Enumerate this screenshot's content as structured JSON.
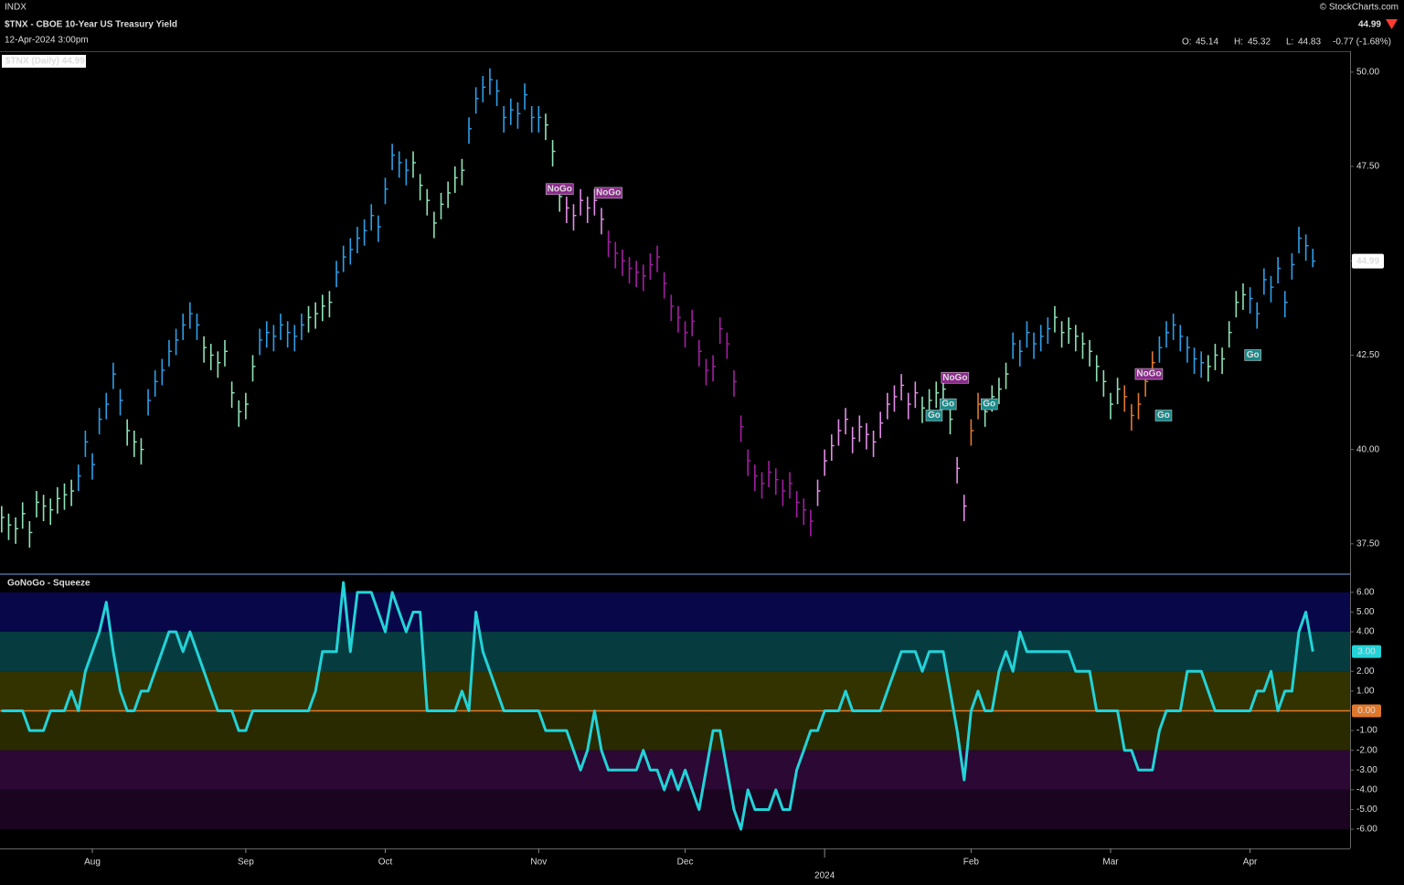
{
  "header": {
    "exchange": "INDX",
    "title": "$TNX - CBOE 10-Year US Treasury Yield",
    "subtitle": "12-Apr-2024 3:00pm",
    "source": "© StockCharts.com",
    "quote_labels": [
      "O:",
      "H:",
      "L:"
    ],
    "open": 45.14,
    "change": "-0.77 (-1.68%)",
    "change_color": "#ff3b30"
  },
  "chart_data": [
    {
      "type": "ohlc",
      "legend": "$TNX (Daily) 44.99",
      "xlim": [
        -0.24,
        193.34
      ],
      "ylim": [
        36.72,
        50.53
      ],
      "yticks": [
        {
          "value": 37.5,
          "label": "37.50"
        },
        {
          "value": 40,
          "label": "40.00"
        },
        {
          "value": 42.5,
          "label": "42.50"
        },
        {
          "value": 45,
          "label": "45.00"
        },
        {
          "value": 47.5,
          "label": "47.50"
        },
        {
          "value": 50,
          "label": "50.00"
        }
      ],
      "close": [
        38.2,
        38.0,
        37.9,
        38.3,
        37.8,
        38.6,
        38.5,
        38.4,
        38.7,
        38.8,
        38.9,
        39.3,
        40.2,
        39.6,
        40.8,
        41.2,
        42.0,
        41.3,
        40.5,
        40.2,
        40.0,
        41.3,
        41.8,
        42.1,
        42.6,
        42.9,
        43.3,
        43.6,
        43.3,
        42.7,
        42.5,
        42.3,
        42.6,
        41.5,
        41.0,
        41.2,
        42.2,
        42.9,
        43.1,
        43.0,
        43.3,
        43.1,
        43.0,
        43.3,
        43.5,
        43.6,
        43.8,
        43.9,
        44.7,
        45.1,
        45.3,
        45.6,
        45.8,
        46.2,
        45.9,
        46.9,
        47.8,
        47.6,
        47.4,
        47.6,
        47.0,
        46.6,
        46.0,
        46.5,
        46.8,
        47.2,
        47.4,
        48.5,
        49.3,
        49.6,
        49.8,
        49.5,
        48.8,
        49.0,
        48.9,
        49.4,
        48.8,
        48.8,
        48.6,
        47.9,
        46.7,
        46.4,
        46.2,
        46.6,
        46.4,
        46.6,
        46.1,
        45.5,
        45.2,
        45.0,
        44.8,
        44.7,
        44.6,
        44.9,
        45.1,
        44.4,
        43.8,
        43.5,
        43.1,
        43.4,
        42.6,
        42.1,
        42.2,
        43.2,
        42.8,
        41.8,
        40.6,
        39.7,
        39.3,
        39.1,
        39.4,
        39.2,
        38.9,
        39.1,
        38.6,
        38.4,
        38.1,
        38.9,
        39.7,
        40.1,
        40.5,
        40.8,
        40.3,
        40.6,
        40.4,
        40.2,
        40.7,
        41.2,
        41.4,
        41.7,
        41.2,
        41.5,
        41.1,
        41.3,
        41.5,
        41.6,
        40.8,
        39.5,
        38.5,
        40.5,
        41.2,
        41.0,
        41.4,
        41.6,
        42.0,
        42.8,
        42.6,
        43.1,
        42.8,
        43.0,
        43.2,
        43.5,
        43.1,
        43.2,
        43.0,
        42.8,
        42.6,
        42.2,
        41.8,
        41.2,
        41.6,
        41.4,
        40.9,
        41.2,
        41.8,
        42.3,
        42.7,
        43.1,
        43.3,
        43.0,
        42.7,
        42.4,
        42.3,
        42.2,
        42.5,
        42.4,
        43.1,
        43.9,
        44.1,
        44.0,
        43.6,
        44.5,
        44.3,
        44.8,
        43.9,
        44.9,
        45.6,
        45.4,
        44.99
      ],
      "high": [
        38.5,
        38.3,
        38.2,
        38.6,
        38.1,
        38.9,
        38.8,
        38.7,
        39.0,
        39.1,
        39.2,
        39.6,
        40.5,
        39.9,
        41.1,
        41.5,
        42.3,
        41.6,
        40.8,
        40.5,
        40.3,
        41.6,
        42.1,
        42.4,
        42.9,
        43.2,
        43.6,
        43.9,
        43.6,
        43.0,
        42.8,
        42.6,
        42.9,
        41.8,
        41.3,
        41.5,
        42.5,
        43.2,
        43.4,
        43.3,
        43.6,
        43.4,
        43.3,
        43.6,
        43.8,
        43.9,
        44.1,
        44.2,
        45.0,
        45.4,
        45.6,
        45.9,
        46.1,
        46.5,
        46.2,
        47.2,
        48.1,
        47.9,
        47.7,
        47.9,
        47.3,
        46.9,
        46.3,
        46.8,
        47.1,
        47.5,
        47.7,
        48.8,
        49.6,
        49.9,
        50.1,
        49.8,
        49.1,
        49.3,
        49.2,
        49.7,
        49.1,
        49.1,
        48.9,
        48.2,
        47.0,
        46.7,
        46.5,
        46.9,
        46.7,
        46.9,
        46.4,
        45.8,
        45.5,
        45.3,
        45.1,
        45.0,
        44.9,
        45.2,
        45.4,
        44.7,
        44.1,
        43.8,
        43.4,
        43.7,
        42.9,
        42.4,
        42.5,
        43.5,
        43.1,
        42.1,
        40.9,
        40.0,
        39.6,
        39.4,
        39.7,
        39.5,
        39.2,
        39.4,
        38.9,
        38.7,
        38.4,
        39.2,
        40.0,
        40.4,
        40.8,
        41.1,
        40.6,
        40.9,
        40.7,
        40.5,
        41.0,
        41.5,
        41.7,
        42.0,
        41.5,
        41.8,
        41.4,
        41.6,
        41.8,
        41.9,
        41.1,
        39.8,
        38.8,
        40.8,
        41.5,
        41.3,
        41.7,
        41.9,
        42.3,
        43.1,
        42.9,
        43.4,
        43.1,
        43.3,
        43.5,
        43.8,
        43.4,
        43.5,
        43.3,
        43.1,
        42.9,
        42.5,
        42.1,
        41.5,
        41.9,
        41.7,
        41.2,
        41.5,
        42.1,
        42.6,
        43.0,
        43.4,
        43.6,
        43.3,
        43.0,
        42.7,
        42.6,
        42.5,
        42.8,
        42.7,
        43.4,
        44.2,
        44.4,
        44.3,
        43.9,
        44.8,
        44.6,
        45.1,
        44.2,
        45.2,
        45.9,
        45.7,
        45.32
      ],
      "low": [
        37.8,
        37.6,
        37.5,
        37.9,
        37.4,
        38.2,
        38.1,
        38.0,
        38.3,
        38.4,
        38.5,
        38.9,
        39.8,
        39.2,
        40.4,
        40.8,
        41.6,
        40.9,
        40.1,
        39.8,
        39.6,
        40.9,
        41.4,
        41.7,
        42.2,
        42.5,
        42.9,
        43.2,
        42.9,
        42.3,
        42.1,
        41.9,
        42.2,
        41.1,
        40.6,
        40.8,
        41.8,
        42.5,
        42.7,
        42.6,
        42.9,
        42.7,
        42.6,
        42.9,
        43.1,
        43.2,
        43.4,
        43.5,
        44.3,
        44.7,
        44.9,
        45.2,
        45.4,
        45.8,
        45.5,
        46.5,
        47.4,
        47.2,
        47.0,
        47.2,
        46.6,
        46.2,
        45.6,
        46.1,
        46.4,
        46.8,
        47.0,
        48.1,
        48.9,
        49.2,
        49.4,
        49.1,
        48.4,
        48.6,
        48.5,
        49.0,
        48.4,
        48.4,
        48.2,
        47.5,
        46.3,
        46.0,
        45.8,
        46.2,
        46.0,
        46.2,
        45.7,
        45.1,
        44.8,
        44.6,
        44.4,
        44.3,
        44.2,
        44.5,
        44.7,
        44.0,
        43.4,
        43.1,
        42.7,
        43.0,
        42.2,
        41.7,
        41.8,
        42.8,
        42.4,
        41.4,
        40.2,
        39.3,
        38.9,
        38.7,
        39.0,
        38.8,
        38.5,
        38.7,
        38.2,
        38.0,
        37.7,
        38.5,
        39.3,
        39.7,
        40.1,
        40.4,
        39.9,
        40.2,
        40.0,
        39.8,
        40.3,
        40.8,
        41.0,
        41.3,
        40.8,
        41.1,
        40.7,
        40.9,
        41.1,
        41.2,
        40.4,
        39.1,
        38.1,
        40.1,
        40.8,
        40.6,
        41.0,
        41.2,
        41.6,
        42.4,
        42.2,
        42.7,
        42.4,
        42.6,
        42.8,
        43.1,
        42.7,
        42.8,
        42.6,
        42.4,
        42.2,
        41.8,
        41.4,
        40.8,
        41.2,
        41.0,
        40.5,
        40.8,
        41.4,
        41.9,
        42.3,
        42.7,
        42.9,
        42.6,
        42.3,
        42.0,
        41.9,
        41.8,
        42.1,
        42.0,
        42.7,
        43.5,
        43.7,
        43.6,
        43.2,
        44.1,
        43.9,
        44.4,
        43.5,
        44.5,
        45.2,
        45.0,
        44.83
      ],
      "colors": [
        "#8fe3b8",
        "#8fe3b8",
        "#8fe3b8",
        "#8fe3b8",
        "#8fe3b8",
        "#8fe3b8",
        "#8fe3b8",
        "#8fe3b8",
        "#8fe3b8",
        "#8fe3b8",
        "#8fe3b8",
        "#2e9fe8",
        "#2e9fe8",
        "#2e9fe8",
        "#2e9fe8",
        "#2e9fe8",
        "#2e9fe8",
        "#2e9fe8",
        "#8fe3b8",
        "#8fe3b8",
        "#8fe3b8",
        "#2e9fe8",
        "#2e9fe8",
        "#2e9fe8",
        "#2e9fe8",
        "#2e9fe8",
        "#2e9fe8",
        "#2e9fe8",
        "#2e9fe8",
        "#8fe3b8",
        "#8fe3b8",
        "#8fe3b8",
        "#8fe3b8",
        "#8fe3b8",
        "#8fe3b8",
        "#8fe3b8",
        "#8fe3b8",
        "#2e9fe8",
        "#2e9fe8",
        "#2e9fe8",
        "#2e9fe8",
        "#2e9fe8",
        "#2e9fe8",
        "#2e9fe8",
        "#8fe3b8",
        "#8fe3b8",
        "#8fe3b8",
        "#8fe3b8",
        "#2e9fe8",
        "#2e9fe8",
        "#2e9fe8",
        "#2e9fe8",
        "#2e9fe8",
        "#2e9fe8",
        "#2e9fe8",
        "#2e9fe8",
        "#2e9fe8",
        "#2e9fe8",
        "#2e9fe8",
        "#8fe3b8",
        "#8fe3b8",
        "#8fe3b8",
        "#8fe3b8",
        "#8fe3b8",
        "#8fe3b8",
        "#8fe3b8",
        "#8fe3b8",
        "#2e9fe8",
        "#2e9fe8",
        "#2e9fe8",
        "#2e9fe8",
        "#2e9fe8",
        "#2e9fe8",
        "#2e9fe8",
        "#2e9fe8",
        "#2e9fe8",
        "#2e9fe8",
        "#2e9fe8",
        "#8fe3b8",
        "#8fe3b8",
        "#8fe3b8",
        "#e28de8",
        "#e28de8",
        "#e28de8",
        "#e28de8",
        "#e28de8",
        "#e28de8",
        "#a31fa3",
        "#a31fa3",
        "#a31fa3",
        "#a31fa3",
        "#a31fa3",
        "#a31fa3",
        "#a31fa3",
        "#a31fa3",
        "#a31fa3",
        "#a31fa3",
        "#a31fa3",
        "#a31fa3",
        "#a31fa3",
        "#a31fa3",
        "#a31fa3",
        "#a31fa3",
        "#a31fa3",
        "#a31fa3",
        "#a31fa3",
        "#a31fa3",
        "#a31fa3",
        "#a31fa3",
        "#a31fa3",
        "#a31fa3",
        "#a31fa3",
        "#a31fa3",
        "#a31fa3",
        "#a31fa3",
        "#a31fa3",
        "#a31fa3",
        "#e28de8",
        "#e28de8",
        "#e28de8",
        "#e28de8",
        "#e28de8",
        "#e28de8",
        "#e28de8",
        "#e28de8",
        "#e28de8",
        "#e28de8",
        "#e28de8",
        "#e28de8",
        "#e28de8",
        "#e28de8",
        "#e28de8",
        "#8fe3b8",
        "#8fe3b8",
        "#8fe3b8",
        "#8fe3b8",
        "#8fe3b8",
        "#e28de8",
        "#e28de8",
        "#e0782c",
        "#e0782c",
        "#8fe3b8",
        "#8fe3b8",
        "#8fe3b8",
        "#8fe3b8",
        "#2e9fe8",
        "#2e9fe8",
        "#2e9fe8",
        "#2e9fe8",
        "#2e9fe8",
        "#2e9fe8",
        "#8fe3b8",
        "#8fe3b8",
        "#8fe3b8",
        "#8fe3b8",
        "#8fe3b8",
        "#8fe3b8",
        "#8fe3b8",
        "#8fe3b8",
        "#8fe3b8",
        "#8fe3b8",
        "#e0782c",
        "#e0782c",
        "#e0782c",
        "#e0782c",
        "#e0782c",
        "#2e9fe8",
        "#2e9fe8",
        "#2e9fe8",
        "#2e9fe8",
        "#2e9fe8",
        "#2e9fe8",
        "#2e9fe8",
        "#8fe3b8",
        "#8fe3b8",
        "#8fe3b8",
        "#8fe3b8",
        "#8fe3b8",
        "#8fe3b8",
        "#2e9fe8",
        "#2e9fe8",
        "#2e9fe8",
        "#2e9fe8",
        "#2e9fe8",
        "#2e9fe8",
        "#2e9fe8",
        "#2e9fe8",
        "#2e9fe8",
        "#2e9fe8"
      ],
      "annotations": [
        {
          "text": "NoGo",
          "x": 80,
          "y": 46.9,
          "color": "#8a2a8a"
        },
        {
          "text": "NoGo",
          "x": 87,
          "y": 46.8,
          "color": "#8a2a8a"
        },
        {
          "text": "Go",
          "x": 133.7,
          "y": 40.9,
          "color": "#1a8a8a"
        },
        {
          "text": "Go",
          "x": 135.7,
          "y": 41.2,
          "color": "#1a8a8a"
        },
        {
          "text": "NoGo",
          "x": 136.7,
          "y": 41.9,
          "color": "#8a2a8a"
        },
        {
          "text": "Go",
          "x": 141.6,
          "y": 41.2,
          "color": "#1a8a8a"
        },
        {
          "text": "NoGo",
          "x": 164.5,
          "y": 42.0,
          "color": "#8a2a8a"
        },
        {
          "text": "Go",
          "x": 166.6,
          "y": 40.9,
          "color": "#1a8a8a"
        },
        {
          "text": "Go",
          "x": 179.4,
          "y": 42.5,
          "color": "#1a8a8a"
        }
      ]
    },
    {
      "type": "line",
      "legend": "GoNoGo - Squeeze",
      "color": "#22d3d8",
      "xlim": [
        -0.24,
        193.34
      ],
      "ylim": [
        -6.97,
        6.92
      ],
      "xticks": [
        {
          "value": 13,
          "label": "Aug"
        },
        {
          "value": 35,
          "label": "Sep"
        },
        {
          "value": 55,
          "label": "Oct"
        },
        {
          "value": 77,
          "label": "Nov"
        },
        {
          "value": 98,
          "label": "Dec"
        },
        {
          "value": 118,
          "label": "2024"
        },
        {
          "value": 139,
          "label": "Feb"
        },
        {
          "value": 159,
          "label": "Mar"
        },
        {
          "value": 179,
          "label": "Apr"
        }
      ],
      "yticks": [
        {
          "value": -6,
          "label": "-6.00"
        },
        {
          "value": -5,
          "label": "-5.00"
        },
        {
          "value": -4,
          "label": "-4.00"
        },
        {
          "value": -3,
          "label": "-3.00"
        },
        {
          "value": -2,
          "label": "-2.00"
        },
        {
          "value": -1,
          "label": "-1.00"
        },
        {
          "value": 1,
          "label": "1.00"
        },
        {
          "value": 2,
          "label": "2.00"
        },
        {
          "value": 4,
          "label": "4.00"
        },
        {
          "value": 5,
          "label": "5.00"
        },
        {
          "value": 6,
          "label": "6.00"
        }
      ],
      "zero_line": {
        "value": 0,
        "label": "0.00",
        "color": "#e0782c"
      },
      "last_value_label": "3.00",
      "bands": [
        {
          "from": 4,
          "to": 6,
          "color": "#07074a"
        },
        {
          "from": 2,
          "to": 4,
          "color": "#063c40"
        },
        {
          "from": 0,
          "to": 2,
          "color": "#333300"
        },
        {
          "from": -2,
          "to": 0,
          "color": "#2a2a00"
        },
        {
          "from": -4,
          "to": -2,
          "color": "#2c0834"
        },
        {
          "from": -6,
          "to": -4,
          "color": "#1a0420"
        }
      ],
      "values": [
        0,
        0,
        0,
        0,
        -1,
        -1,
        -1,
        0,
        0,
        0,
        1,
        0,
        2,
        3,
        4,
        5.5,
        3,
        1,
        0,
        0,
        1,
        1,
        2,
        3,
        4,
        4,
        3,
        4,
        3,
        2,
        1,
        0,
        0,
        0,
        -1,
        -1,
        0,
        0,
        0,
        0,
        0,
        0,
        0,
        0,
        0,
        1,
        3,
        3,
        3,
        6.5,
        3,
        6,
        6,
        6,
        5,
        4,
        6,
        5,
        4,
        5,
        5,
        0,
        0,
        0,
        0,
        0,
        1,
        0,
        5,
        3,
        2,
        1,
        0,
        0,
        0,
        0,
        0,
        0,
        -1,
        -1,
        -1,
        -1,
        -2,
        -3,
        -2,
        0,
        -2,
        -3,
        -3,
        -3,
        -3,
        -3,
        -2,
        -3,
        -3,
        -4,
        -3,
        -4,
        -3,
        -4,
        -5,
        -3,
        -1,
        -1,
        -3,
        -5,
        -6,
        -4,
        -5,
        -5,
        -5,
        -4,
        -5,
        -5,
        -3,
        -2,
        -1,
        -1,
        0,
        0,
        0,
        1,
        0,
        0,
        0,
        0,
        0,
        1,
        2,
        3,
        3,
        3,
        2,
        3,
        3,
        3,
        1,
        -1,
        -3.5,
        0,
        1,
        0,
        0,
        2,
        3,
        2,
        4,
        3,
        3,
        3,
        3,
        3,
        3,
        3,
        2,
        2,
        2,
        0,
        0,
        0,
        0,
        -2,
        -2,
        -3,
        -3,
        -3,
        -1,
        0,
        0,
        0,
        2,
        2,
        2,
        1,
        0,
        0,
        0,
        0,
        0,
        0,
        1,
        1,
        2,
        0,
        1,
        1,
        4,
        5,
        3
      ]
    }
  ]
}
